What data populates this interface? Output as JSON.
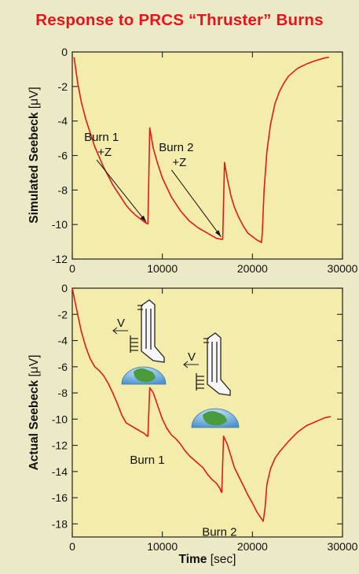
{
  "title": "Response to PRCS “Thruster” Burns",
  "chart_data": [
    {
      "type": "line",
      "title": "",
      "xlabel": "",
      "ylabel_main": "Simulated Seebeck ",
      "ylabel_unit": "[μV]",
      "xlim": [
        0,
        30000
      ],
      "ylim": [
        -12,
        0
      ],
      "xticks": [
        0,
        10000,
        20000,
        30000
      ],
      "xtick_labels": [
        "0",
        "10000",
        "20000",
        "30000"
      ],
      "yticks": [
        0,
        -2,
        -4,
        -6,
        -8,
        -10,
        -12
      ],
      "ytick_labels": [
        "0",
        "-2",
        "-4",
        "-6",
        "-8",
        "-10",
        "-12"
      ],
      "grid": false,
      "series": [
        {
          "x": [
            200,
            600,
            1000,
            1500,
            2000,
            2500,
            3000,
            3500,
            4000,
            4500,
            5000,
            5500,
            6000,
            6500,
            7000,
            7500,
            8000,
            8300,
            8400,
            8600,
            9000,
            9500,
            10000,
            11000,
            12000,
            13000,
            14000,
            15000,
            15500,
            16000,
            16500,
            16600,
            16700,
            16900,
            17200,
            17600,
            18000,
            18500,
            19000,
            19500,
            20000,
            20500,
            20900,
            21000,
            21100,
            21300,
            21600,
            22000,
            22500,
            23000,
            23500,
            24000,
            25000,
            26000,
            27000,
            28000,
            28500
          ],
          "y": [
            -0.3,
            -1.8,
            -2.9,
            -3.9,
            -4.7,
            -5.5,
            -6.1,
            -6.7,
            -7.2,
            -7.7,
            -8.1,
            -8.5,
            -8.9,
            -9.2,
            -9.45,
            -9.65,
            -9.85,
            -9.95,
            -9.95,
            -4.4,
            -5.6,
            -6.5,
            -7.3,
            -8.4,
            -9.2,
            -9.8,
            -10.2,
            -10.5,
            -10.65,
            -10.8,
            -10.85,
            -10.85,
            -10.85,
            -6.4,
            -7.3,
            -8.3,
            -9.0,
            -9.6,
            -10.1,
            -10.5,
            -10.7,
            -10.9,
            -11.0,
            -11.05,
            -10.5,
            -8.0,
            -5.8,
            -4.2,
            -3.0,
            -2.3,
            -1.8,
            -1.4,
            -0.95,
            -0.7,
            -0.5,
            -0.35,
            -0.3
          ]
        }
      ],
      "annotations": [
        {
          "line1": "Burn 1",
          "line2": "+Z",
          "x": 8300,
          "y": -10
        },
        {
          "line1": "Burn 2",
          "line2": "+Z",
          "x": 16600,
          "y": -10.85
        }
      ]
    },
    {
      "type": "line",
      "title": "",
      "xlabel_main": "Time ",
      "xlabel_unit": "[sec]",
      "ylabel_main": "Actual Seebeck ",
      "ylabel_unit": "[μV]",
      "xlim": [
        0,
        30000
      ],
      "ylim": [
        -19,
        0
      ],
      "xticks": [
        0,
        10000,
        20000,
        30000
      ],
      "xtick_labels": [
        "0",
        "10000",
        "20000",
        "30000"
      ],
      "yticks": [
        0,
        -2,
        -4,
        -6,
        -8,
        -10,
        -12,
        -14,
        -16,
        -18
      ],
      "ytick_labels": [
        "0",
        "-2",
        "-4",
        "-6",
        "-8",
        "-10",
        "-12",
        "-14",
        "-16",
        "-18"
      ],
      "grid": false,
      "series": [
        {
          "x": [
            0,
            300,
            600,
            1000,
            1500,
            2000,
            2500,
            3000,
            3500,
            4000,
            4500,
            5000,
            5500,
            6000,
            6500,
            7000,
            7500,
            8000,
            8300,
            8400,
            8600,
            9000,
            9500,
            10000,
            10500,
            11000,
            11500,
            12000,
            12500,
            13000,
            13500,
            14000,
            14500,
            15000,
            15500,
            16000,
            16400,
            16500,
            16600,
            16800,
            17200,
            17600,
            18000,
            18500,
            19000,
            19500,
            20000,
            20500,
            21000,
            21200,
            21400,
            21600,
            22000,
            22500,
            23000,
            24000,
            25000,
            26000,
            27000,
            28000,
            28700
          ],
          "y": [
            0,
            -1,
            -2,
            -3.3,
            -4.5,
            -5.4,
            -6.0,
            -6.3,
            -6.7,
            -7.3,
            -8.0,
            -8.8,
            -9.7,
            -10.3,
            -10.5,
            -10.7,
            -10.9,
            -11.1,
            -11.3,
            -11.3,
            -7.6,
            -8.0,
            -9.0,
            -10.0,
            -10.7,
            -11.2,
            -11.5,
            -11.9,
            -12.4,
            -12.8,
            -13.1,
            -13.4,
            -13.7,
            -14.2,
            -14.6,
            -14.9,
            -15.3,
            -15.5,
            -15.6,
            -11.3,
            -11.9,
            -12.8,
            -13.7,
            -14.4,
            -15.1,
            -15.8,
            -16.4,
            -17.1,
            -17.6,
            -17.8,
            -16.8,
            -15.0,
            -13.8,
            -13.0,
            -12.5,
            -11.7,
            -11.0,
            -10.5,
            -10.2,
            -9.9,
            -9.8
          ]
        }
      ],
      "annotations": [
        {
          "text": "Burn 1",
          "x": 8500,
          "y": -11.3
        },
        {
          "text": "Burn 2",
          "x": 16600,
          "y": -15.6
        }
      ],
      "velocity_label": "V"
    }
  ]
}
